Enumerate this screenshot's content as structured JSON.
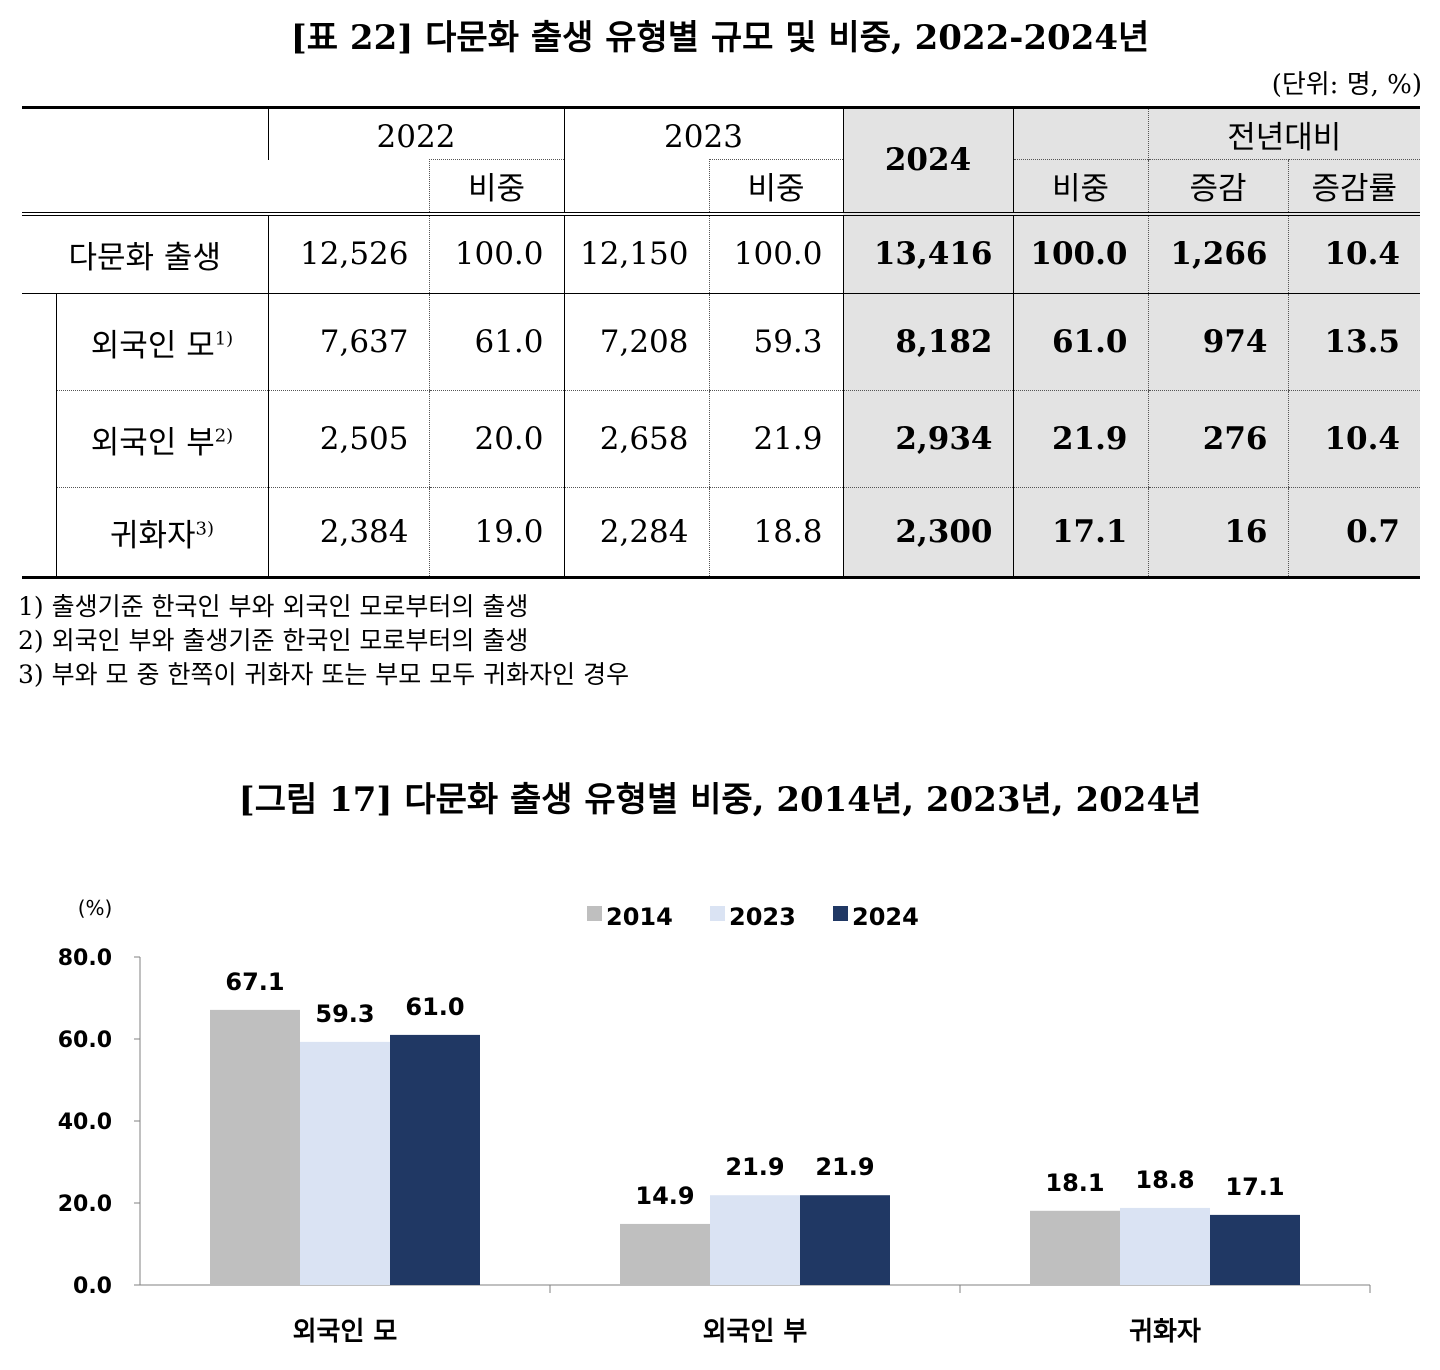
{
  "table": {
    "title": "[표 22] 다문화 출생 유형별 규모 및 비중, 2022-2024년",
    "unit": "(단위: 명, %)",
    "headers": {
      "y2022": "2022",
      "y2023": "2023",
      "y2024": "2024",
      "share": "비중",
      "yoy": "전년대비",
      "change": "증감",
      "change_rate": "증감률"
    },
    "rows": [
      {
        "label": "다문화 출생",
        "sup": "",
        "v2022": "12,526",
        "s2022": "100.0",
        "v2023": "12,150",
        "s2023": "100.0",
        "v2024": "13,416",
        "s2024": "100.0",
        "chg": "1,266",
        "rate": "10.4"
      },
      {
        "label": "외국인 모",
        "sup": "1)",
        "v2022": "7,637",
        "s2022": "61.0",
        "v2023": "7,208",
        "s2023": "59.3",
        "v2024": "8,182",
        "s2024": "61.0",
        "chg": "974",
        "rate": "13.5"
      },
      {
        "label": "외국인 부",
        "sup": "2)",
        "v2022": "2,505",
        "s2022": "20.0",
        "v2023": "2,658",
        "s2023": "21.9",
        "v2024": "2,934",
        "s2024": "21.9",
        "chg": "276",
        "rate": "10.4"
      },
      {
        "label": "귀화자",
        "sup": "3)",
        "v2022": "2,384",
        "s2022": "19.0",
        "v2023": "2,284",
        "s2023": "18.8",
        "v2024": "2,300",
        "s2024": "17.1",
        "chg": "16",
        "rate": "0.7"
      }
    ]
  },
  "footnotes": [
    "1) 출생기준 한국인 부와 외국인 모로부터의 출생",
    "2) 외국인 부와 출생기준 한국인 모로부터의 출생",
    "3) 부와 모 중 한쪽이 귀화자 또는 부모 모두 귀화자인 경우"
  ],
  "chart_data": {
    "type": "bar",
    "title": "[그림 17] 다문화 출생 유형별 비중, 2014년, 2023년, 2024년",
    "ylabel": "(%)",
    "ylim": [
      0,
      80
    ],
    "yticks": [
      "0.0",
      "20.0",
      "40.0",
      "60.0",
      "80.0"
    ],
    "categories": [
      "외국인 모",
      "외국인 부",
      "귀화자"
    ],
    "series": [
      {
        "name": "2014",
        "color": "#bfbfbf",
        "values": [
          67.1,
          14.9,
          18.1
        ],
        "labels": [
          "67.1",
          "14.9",
          "18.1"
        ]
      },
      {
        "name": "2023",
        "color": "#dae3f3",
        "values": [
          59.3,
          21.9,
          18.8
        ],
        "labels": [
          "59.3",
          "21.9",
          "18.8"
        ]
      },
      {
        "name": "2024",
        "color": "#203864",
        "values": [
          61.0,
          21.9,
          17.1
        ],
        "labels": [
          "61.0",
          "21.9",
          "17.1"
        ]
      }
    ],
    "legend_position": "top",
    "grid": false
  }
}
